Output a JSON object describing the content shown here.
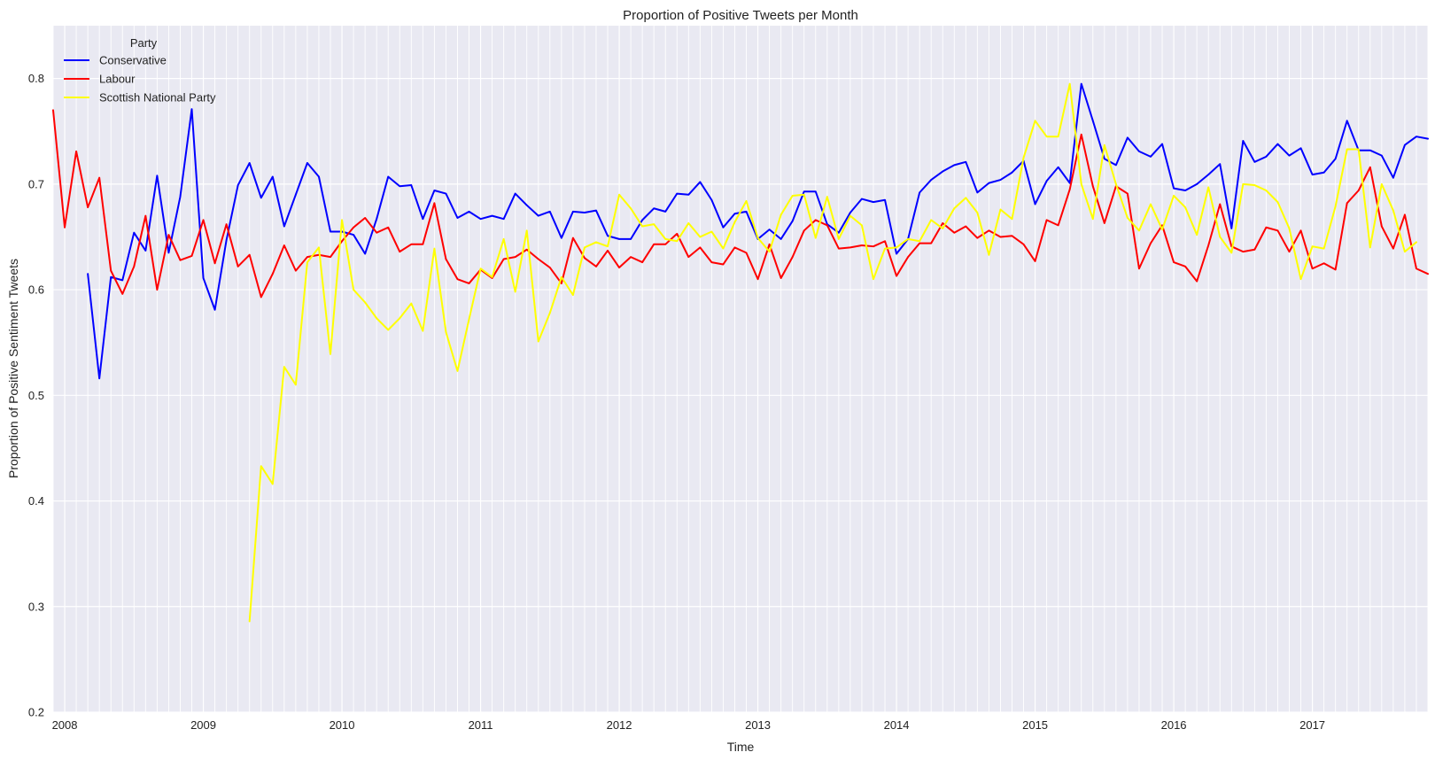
{
  "chart_data": {
    "type": "line",
    "title": "Proportion of Positive Tweets per Month",
    "xlabel": "Time",
    "ylabel": "Proportion of Positive Sentiment Tweets",
    "x_start": "2007-12",
    "x_end": "2017-11",
    "xlim": [
      "2007-12",
      "2017-11"
    ],
    "ylim": [
      0.2,
      0.85
    ],
    "x_ticks": [
      "2008",
      "2009",
      "2010",
      "2011",
      "2012",
      "2013",
      "2014",
      "2015",
      "2016",
      "2017"
    ],
    "y_ticks": [
      "0.2",
      "0.3",
      "0.4",
      "0.5",
      "0.6",
      "0.7",
      "0.8"
    ],
    "grid": true,
    "background": "#e9e9f2",
    "legend": {
      "title": "Party",
      "placement": "top-left"
    },
    "series": [
      {
        "name": "Conservative",
        "color": "#0000ff",
        "start": "2008-03",
        "values": [
          0.615,
          0.516,
          0.612,
          0.609,
          0.654,
          0.637,
          0.708,
          0.635,
          0.688,
          0.771,
          0.611,
          0.581,
          0.647,
          0.699,
          0.72,
          0.687,
          0.707,
          0.66,
          0.69,
          0.72,
          0.707,
          0.655,
          0.655,
          0.652,
          0.634,
          0.667,
          0.707,
          0.698,
          0.699,
          0.667,
          0.694,
          0.691,
          0.668,
          0.674,
          0.667,
          0.67,
          0.667,
          0.691,
          0.68,
          0.67,
          0.674,
          0.649,
          0.674,
          0.673,
          0.675,
          0.651,
          0.648,
          0.648,
          0.666,
          0.677,
          0.674,
          0.691,
          0.69,
          0.702,
          0.685,
          0.659,
          0.672,
          0.674,
          0.648,
          0.657,
          0.648,
          0.665,
          0.693,
          0.693,
          0.662,
          0.654,
          0.673,
          0.686,
          0.683,
          0.685,
          0.634,
          0.648,
          0.692,
          0.704,
          0.712,
          0.718,
          0.721,
          0.692,
          0.701,
          0.704,
          0.711,
          0.722,
          0.681,
          0.703,
          0.716,
          0.701,
          0.795,
          0.76,
          0.724,
          0.718,
          0.744,
          0.731,
          0.726,
          0.738,
          0.696,
          0.694,
          0.7,
          0.709,
          0.719,
          0.658,
          0.741,
          0.721,
          0.726,
          0.738,
          0.727,
          0.734,
          0.709,
          0.711,
          0.724,
          0.76,
          0.732,
          0.732,
          0.727,
          0.706,
          0.737,
          0.745,
          0.743
        ]
      },
      {
        "name": "Labour",
        "color": "#ff0000",
        "start": "2007-12",
        "values": [
          0.77,
          0.659,
          0.731,
          0.678,
          0.706,
          0.618,
          0.596,
          0.622,
          0.67,
          0.6,
          0.652,
          0.628,
          0.632,
          0.666,
          0.625,
          0.662,
          0.622,
          0.633,
          0.593,
          0.615,
          0.642,
          0.618,
          0.631,
          0.633,
          0.631,
          0.646,
          0.659,
          0.668,
          0.654,
          0.659,
          0.636,
          0.643,
          0.643,
          0.682,
          0.629,
          0.61,
          0.606,
          0.619,
          0.611,
          0.629,
          0.631,
          0.638,
          0.629,
          0.621,
          0.606,
          0.649,
          0.63,
          0.622,
          0.637,
          0.621,
          0.631,
          0.626,
          0.643,
          0.643,
          0.653,
          0.631,
          0.64,
          0.626,
          0.624,
          0.64,
          0.635,
          0.61,
          0.643,
          0.611,
          0.631,
          0.656,
          0.666,
          0.661,
          0.639,
          0.64,
          0.642,
          0.641,
          0.646,
          0.613,
          0.631,
          0.644,
          0.644,
          0.663,
          0.654,
          0.66,
          0.649,
          0.656,
          0.65,
          0.651,
          0.643,
          0.627,
          0.666,
          0.661,
          0.695,
          0.747,
          0.698,
          0.663,
          0.698,
          0.691,
          0.62,
          0.644,
          0.661,
          0.626,
          0.622,
          0.608,
          0.642,
          0.681,
          0.641,
          0.636,
          0.638,
          0.659,
          0.656,
          0.636,
          0.656,
          0.62,
          0.625,
          0.619,
          0.682,
          0.694,
          0.716,
          0.66,
          0.639,
          0.671,
          0.62,
          0.615
        ]
      },
      {
        "name": "Scottish National Party",
        "color": "#ffff00",
        "start": "2009-05",
        "values": [
          0.286,
          0.433,
          0.416,
          0.527,
          0.51,
          0.626,
          0.64,
          0.539,
          0.666,
          0.6,
          0.588,
          0.573,
          0.562,
          0.573,
          0.587,
          0.561,
          0.639,
          0.56,
          0.523,
          0.572,
          0.62,
          0.612,
          0.648,
          0.598,
          0.656,
          0.551,
          0.578,
          0.612,
          0.595,
          0.64,
          0.645,
          0.641,
          0.69,
          0.677,
          0.66,
          0.662,
          0.648,
          0.646,
          0.663,
          0.65,
          0.655,
          0.639,
          0.664,
          0.684,
          0.649,
          0.636,
          0.671,
          0.689,
          0.69,
          0.649,
          0.688,
          0.648,
          0.67,
          0.661,
          0.61,
          0.639,
          0.64,
          0.648,
          0.646,
          0.666,
          0.658,
          0.677,
          0.687,
          0.673,
          0.633,
          0.676,
          0.667,
          0.725,
          0.76,
          0.745,
          0.745,
          0.795,
          0.7,
          0.667,
          0.737,
          0.7,
          0.668,
          0.656,
          0.681,
          0.657,
          0.689,
          0.678,
          0.652,
          0.697,
          0.65,
          0.635,
          0.7,
          0.699,
          0.694,
          0.683,
          0.658,
          0.61,
          0.641,
          0.639,
          0.679,
          0.733,
          0.733,
          0.64,
          0.7,
          0.675,
          0.636,
          0.645
        ]
      }
    ]
  }
}
